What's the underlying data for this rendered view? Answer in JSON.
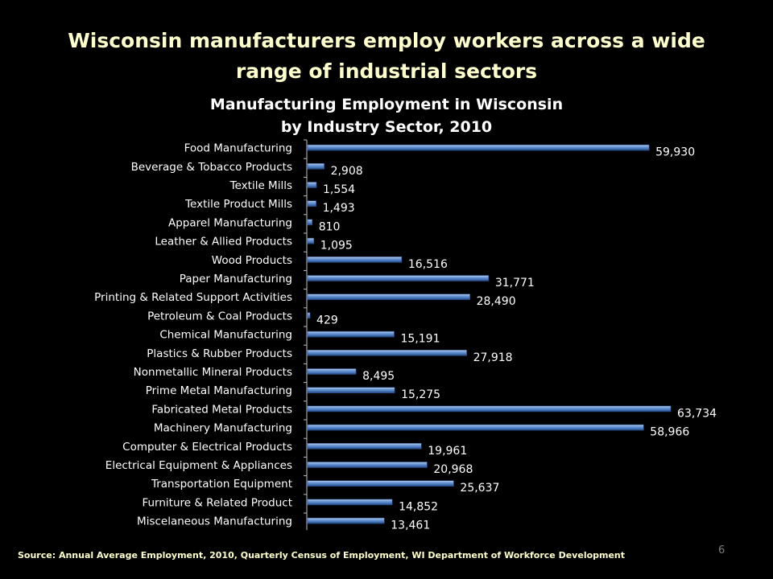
{
  "slide": {
    "title_line1": "Wisconsin manufacturers employ workers across a wide",
    "title_line2": "range of industrial sectors",
    "source": "Source: Annual Average Employment, 2010,  Quarterly Census of Employment, WI  Department of Workforce Development",
    "page_number": "6"
  },
  "chart_data": {
    "type": "bar",
    "orientation": "horizontal",
    "title": "Manufacturing Employment in Wisconsin",
    "subtitle": "by Industry Sector, 2010",
    "bar_color": "#4f81bd",
    "grid": false,
    "legend": "none",
    "xlim": [
      0,
      65000
    ],
    "categories": [
      "Food Manufacturing",
      "Beverage & Tobacco Products",
      "Textile Mills",
      "Textile Product Mills",
      "Apparel Manufacturing",
      "Leather & Allied Products",
      "Wood Products",
      "Paper Manufacturing",
      "Printing & Related Support Activities",
      "Petroleum & Coal Products",
      "Chemical Manufacturing",
      "Plastics & Rubber Products",
      "Nonmetallic Mineral Products",
      "Prime Metal Manufacturing",
      "Fabricated Metal Products",
      "Machinery Manufacturing",
      "Computer & Electrical Products",
      "Electrical Equipment & Appliances",
      "Transportation Equipment",
      "Furniture & Related Product",
      "Miscelaneous Manufacturing"
    ],
    "values": [
      59930,
      2908,
      1554,
      1493,
      810,
      1095,
      16516,
      31771,
      28490,
      429,
      15191,
      27918,
      8495,
      15275,
      63734,
      58966,
      19961,
      20968,
      25637,
      14852,
      13461
    ],
    "value_labels": [
      "59,930",
      "2,908",
      "1,554",
      "1,493",
      "810",
      "1,095",
      "16,516",
      "31,771",
      "28,490",
      "429",
      "15,191",
      "27,918",
      "8,495",
      "15,275",
      "63,734",
      "58,966",
      "19,961",
      "20,968",
      "25,637",
      "14,852",
      "13,461"
    ]
  }
}
